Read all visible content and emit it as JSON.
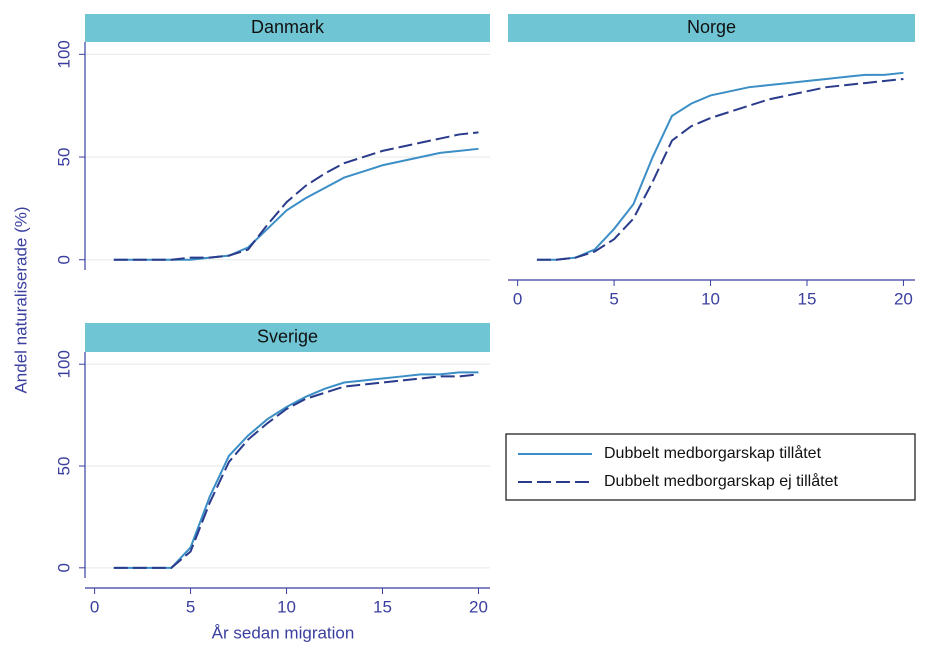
{
  "y_label": "Andel naturaliserade (%)",
  "x_label": "År sedan migration",
  "chart_data": [
    {
      "type": "line",
      "title": "Danmark",
      "x": [
        1,
        2,
        3,
        4,
        5,
        6,
        7,
        8,
        9,
        10,
        11,
        12,
        13,
        14,
        15,
        16,
        17,
        18,
        19,
        20
      ],
      "series": [
        {
          "name": "Dubbelt medborgarskap tillåtet",
          "color": "#3b8fc6",
          "dash": false,
          "values": [
            0,
            0,
            0,
            0,
            0,
            1,
            2,
            6,
            15,
            24,
            30,
            35,
            40,
            43,
            46,
            48,
            50,
            52,
            53,
            54
          ]
        },
        {
          "name": "Dubbelt medborgarskap ej tillåtet",
          "color": "#2a3b8c",
          "dash": true,
          "values": [
            0,
            0,
            0,
            0,
            1,
            1,
            2,
            5,
            17,
            28,
            36,
            42,
            47,
            50,
            53,
            55,
            57,
            59,
            61,
            62
          ]
        }
      ],
      "xlim": [
        -0.5,
        20.6
      ],
      "ylim": [
        -5,
        106
      ],
      "yticks": [
        0,
        50,
        100
      ],
      "grid": true
    },
    {
      "type": "line",
      "title": "Norge",
      "x": [
        1,
        2,
        3,
        4,
        5,
        6,
        7,
        8,
        9,
        10,
        11,
        12,
        13,
        14,
        15,
        16,
        17,
        18,
        19,
        20
      ],
      "series": [
        {
          "name": "Dubbelt medborgarskap tillåtet",
          "color": "#3b8fc6",
          "dash": false,
          "values": [
            0,
            0,
            1,
            5,
            15,
            27,
            50,
            70,
            76,
            80,
            82,
            84,
            85,
            86,
            87,
            88,
            89,
            90,
            90,
            91
          ]
        },
        {
          "name": "Dubbelt medborgarskap ej tillåtet",
          "color": "#2a3b8c",
          "dash": true,
          "values": [
            0,
            0,
            1,
            4,
            10,
            20,
            38,
            58,
            65,
            69,
            72,
            75,
            78,
            80,
            82,
            84,
            85,
            86,
            87,
            88
          ]
        }
      ],
      "xlim": [
        -0.5,
        20.6
      ],
      "ylim": [
        -5,
        106
      ],
      "xticks": [
        0,
        5,
        10,
        15,
        20
      ],
      "grid": true
    },
    {
      "type": "line",
      "title": "Sverige",
      "x": [
        1,
        2,
        3,
        4,
        5,
        6,
        7,
        8,
        9,
        10,
        11,
        12,
        13,
        14,
        15,
        16,
        17,
        18,
        19,
        20
      ],
      "series": [
        {
          "name": "Dubbelt medborgarskap tillåtet",
          "color": "#3b8fc6",
          "dash": false,
          "values": [
            0,
            0,
            0,
            0,
            10,
            35,
            55,
            65,
            73,
            79,
            84,
            88,
            91,
            92,
            93,
            94,
            95,
            95,
            96,
            96
          ]
        },
        {
          "name": "Dubbelt medborgarskap ej tillåtet",
          "color": "#2a3b8c",
          "dash": true,
          "values": [
            0,
            0,
            0,
            0,
            8,
            32,
            52,
            63,
            71,
            78,
            83,
            86,
            89,
            90,
            91,
            92,
            93,
            94,
            94,
            95
          ]
        }
      ],
      "xlim": [
        -0.5,
        20.6
      ],
      "ylim": [
        -5,
        106
      ],
      "yticks": [
        0,
        50,
        100
      ],
      "xticks": [
        0,
        5,
        10,
        15,
        20
      ],
      "grid": true
    }
  ]
}
